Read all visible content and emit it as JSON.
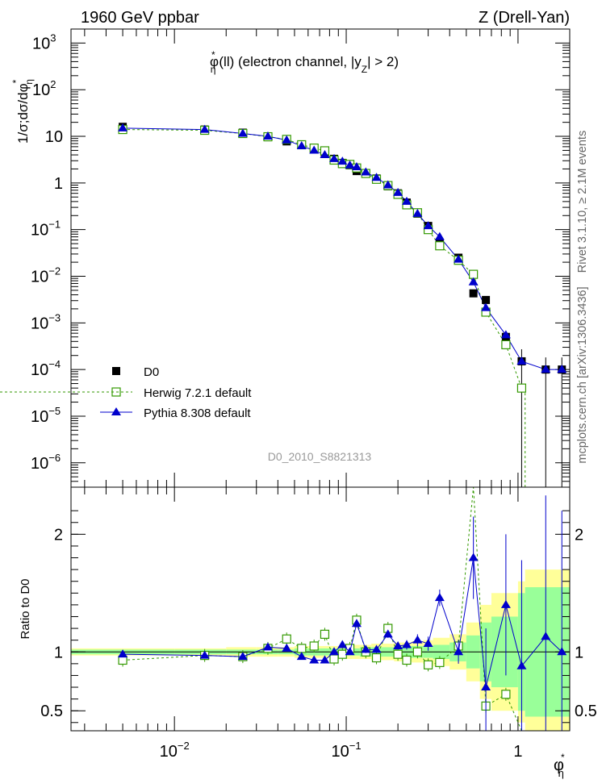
{
  "header": {
    "left": "1960 GeV ppbar",
    "right": "Z (Drell-Yan)"
  },
  "title": {
    "main": "φ",
    "sup": "*",
    "sub": "η",
    "rest1": "(ll) (electron channel, |y",
    "sub2": "Z",
    "rest2": "| > 2)"
  },
  "ylabel_top": {
    "prefix": "1/σ;dσ/dφ",
    "sup": "*",
    "sub": "η"
  },
  "ylabel_bottom": "Ratio to D0",
  "xlabel": {
    "main": "φ",
    "sup": "*",
    "sub": "η"
  },
  "side": {
    "rivet": "Rivet 3.1.10, ≥ 2.1M events",
    "mcplots": "mcplots.cern.ch [arXiv:1306.3436]"
  },
  "analysis_id": "D0_2010_S8821313",
  "legend": [
    {
      "name": "D0",
      "marker": "square-filled",
      "color": "#000000"
    },
    {
      "name": "Herwig 7.2.1 default",
      "marker": "square-open",
      "color": "#339900"
    },
    {
      "name": "Pythia 8.308 default",
      "marker": "triangle-filled",
      "color": "#0000cc"
    }
  ],
  "axis_ticks": {
    "x": [
      "10",
      "−2",
      "10",
      "−1",
      "1"
    ],
    "y_top": [
      "10",
      "−6",
      "10",
      "−5",
      "10",
      "−4",
      "10",
      "−3",
      "10",
      "−2",
      "10",
      "−1",
      "1",
      "10",
      "10",
      "2",
      "10",
      "3"
    ],
    "y_bottom": [
      "0.5",
      "1",
      "2"
    ]
  },
  "chart_data": {
    "type": "scatter",
    "xscale": "log",
    "yscale_top": "log",
    "xlim": [
      0.0025,
      2.0
    ],
    "ylim_top": [
      3e-07,
      2000
    ],
    "ylim_bottom": [
      0.33,
      2.4
    ],
    "x": [
      0.005,
      0.015,
      0.025,
      0.035,
      0.045,
      0.055,
      0.065,
      0.075,
      0.085,
      0.095,
      0.105,
      0.115,
      0.13,
      0.15,
      0.175,
      0.2,
      0.225,
      0.26,
      0.3,
      0.35,
      0.45,
      0.55,
      0.65,
      0.85,
      1.05,
      1.45,
      1.8
    ],
    "series": [
      {
        "name": "D0",
        "values": [
          16,
          14,
          12,
          9.6,
          7.8,
          6.5,
          5.4,
          4.3,
          3.3,
          2.7,
          2.4,
          1.8,
          1.6,
          1.25,
          0.85,
          0.6,
          0.38,
          0.22,
          0.12,
          0.05,
          0.025,
          0.0043,
          0.0031,
          0.0005,
          0.00015,
          0.0001,
          0.0001
        ]
      },
      {
        "name": "Herwig 7.2.1 default",
        "values": [
          14,
          13.5,
          11.5,
          9.8,
          8.6,
          6.6,
          5.6,
          4.9,
          3.1,
          2.6,
          2.5,
          2.1,
          1.6,
          1.2,
          0.88,
          0.57,
          0.34,
          0.23,
          0.1,
          0.045,
          0.022,
          0.011,
          0.0017,
          0.00034,
          4e-05,
          0.0001,
          0.0001
        ]
      },
      {
        "name": "Pythia 8.308 default",
        "values": [
          15,
          14,
          11.5,
          10,
          8.3,
          6.2,
          5.0,
          4.0,
          3.3,
          2.9,
          2.4,
          2.2,
          1.7,
          1.3,
          0.9,
          0.62,
          0.4,
          0.22,
          0.12,
          0.07,
          0.023,
          0.0075,
          0.0021,
          0.00055,
          0.00015,
          0.0001,
          0.0001
        ]
      }
    ],
    "ratio": {
      "reference": "D0",
      "series": [
        {
          "name": "Herwig 7.2.1 default",
          "x": [
            0.005,
            0.015,
            0.025,
            0.035,
            0.045,
            0.055,
            0.065,
            0.075,
            0.085,
            0.095,
            0.105,
            0.115,
            0.13,
            0.15,
            0.175,
            0.2,
            0.225,
            0.26,
            0.3,
            0.35,
            0.45,
            0.55,
            0.65,
            0.85,
            1.05
          ],
          "values": [
            0.93,
            0.97,
            0.96,
            1.03,
            1.11,
            1.03,
            1.05,
            1.15,
            0.94,
            0.98,
            1.03,
            1.27,
            1.0,
            0.95,
            1.2,
            0.98,
            0.93,
            1.0,
            0.89,
            0.91,
            1.05,
            2.5,
            0.54,
            0.64,
            0.0
          ]
        },
        {
          "name": "Pythia 8.308 default",
          "x": [
            0.005,
            0.015,
            0.025,
            0.035,
            0.045,
            0.055,
            0.065,
            0.075,
            0.085,
            0.095,
            0.105,
            0.115,
            0.13,
            0.15,
            0.175,
            0.2,
            0.225,
            0.26,
            0.3,
            0.35,
            0.45,
            0.55,
            0.65,
            0.85,
            1.05,
            1.45,
            1.8
          ],
          "values": [
            0.98,
            0.97,
            0.96,
            1.04,
            1.03,
            0.96,
            0.93,
            0.93,
            1.0,
            1.06,
            1.0,
            1.24,
            1.02,
            1.02,
            1.15,
            1.05,
            1.06,
            1.1,
            1.07,
            1.46,
            1.0,
            1.8,
            0.7,
            1.4,
            0.88,
            1.13,
            1.0
          ]
        }
      ]
    }
  }
}
